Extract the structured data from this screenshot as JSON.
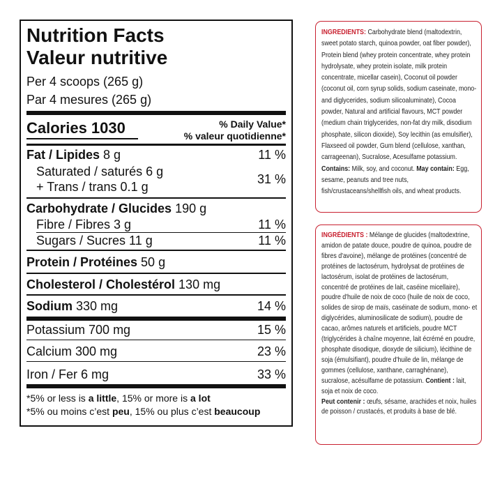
{
  "nutrition_facts": {
    "title": [
      "Nutrition Facts",
      "Valeur nutritive"
    ],
    "serving": [
      "Per 4 scoops (265 g)",
      "Par 4 mesures (265 g)"
    ],
    "calories": "Calories 1030",
    "daily_value": [
      "% Daily Value*",
      "% valeur quotidienne*"
    ],
    "fat": {
      "label": "Fat / Lipides",
      "amount": "8 g",
      "dv": "11 %"
    },
    "saturated_trans": {
      "saturated": "Saturated / saturés 6 g",
      "trans": "+ Trans / trans 0.1 g",
      "dv": "31 %"
    },
    "carbohydrate": {
      "label": "Carbohydrate / Glucides",
      "amount": "190 g"
    },
    "fibre": {
      "label": "Fibre / Fibres 3 g",
      "dv": "11 %"
    },
    "sugars": {
      "label": "Sugars / Sucres 11 g",
      "dv": "11 %"
    },
    "protein": {
      "label": "Protein / Protéines",
      "amount": "50 g"
    },
    "cholesterol": {
      "label": "Cholesterol / Cholestérol",
      "amount": "130 mg"
    },
    "sodium": {
      "label": "Sodium",
      "amount": "330 mg",
      "dv": "14 %"
    },
    "minerals": [
      {
        "label": "Potassium 700 mg",
        "dv": "15 %"
      },
      {
        "label": "Calcium 300 mg",
        "dv": "23 %"
      },
      {
        "label": "Iron / Fer 6 mg",
        "dv": "33 %"
      }
    ],
    "footnote": [
      [
        "*5% or less is ",
        "a little",
        ", 15% or more is ",
        "a lot"
      ],
      [
        "*5% ou moins c’est ",
        "peu",
        ", 15% ou plus c’est ",
        "beaucoup"
      ]
    ]
  },
  "ingredients_en": {
    "label": "INGREDIENTS:",
    "text": " Carbohydrate blend (maltodextrin, sweet potato starch, quinoa powder, oat fiber powder), Protein blend (whey protein concentrate, whey protein hydrolysate, whey protein isolate, milk protein concentrate, micellar casein), Coconut oil powder (coconut oil, corn syrup solids, sodium caseinate, mono- and diglycerides, sodium silicoaluminate), Cocoa powder, Natural and artificial flavours, MCT powder (medium chain triglycerides, non-fat dry milk, disodium phosphate, silicon dioxide), Soy lecithin (as emulsifier), Flaxseed oil powder, Gum blend (cellulose, xanthan, carrageenan), Sucralose, Acesulfame potassium. ",
    "contains_label": "Contains:",
    "contains": " Milk, soy, and coconut. ",
    "may_contain_label": "May contain:",
    "may_contain": " Egg, sesame, peanuts and tree nuts, fish/crustaceans/shellfish oils, and wheat products."
  },
  "ingredients_fr": {
    "label": "INGRÉDIENTS :",
    "text": " Mélange de glucides (maltodextrine, amidon de patate douce, poudre de quinoa, poudre de fibres d'avoine), mélange de protéines (concentré de protéines de lactosérum, hydrolysat de protéines de lactosérum, isolat de protéines de lactosérum, concentré de protéines de lait, caséine micellaire), poudre d'huile de noix de coco (huile de noix de coco, solides de sirop de maïs, caséinate de sodium, mono- et diglycérides, aluminosilicate de sodium), poudre de cacao, arômes naturels et artificiels, poudre MCT (triglycérides à chaîne moyenne, lait écrémé en poudre, phosphate disodique, dioxyde de silicium), lécithine de soja (émulsifiant), poudre d'huile de lin, mélange de gommes (cellulose, xanthane, carraghénane), sucralose, acésulfame de potassium. ",
    "contains_label": "Contient :",
    "contains": " lait, soja et noix de coco.",
    "may_contain_label": "Peut contenir :",
    "may_contain": " œufs, sésame, arachides et noix, huiles de poisson / crustacés, et produits à base de blé."
  }
}
